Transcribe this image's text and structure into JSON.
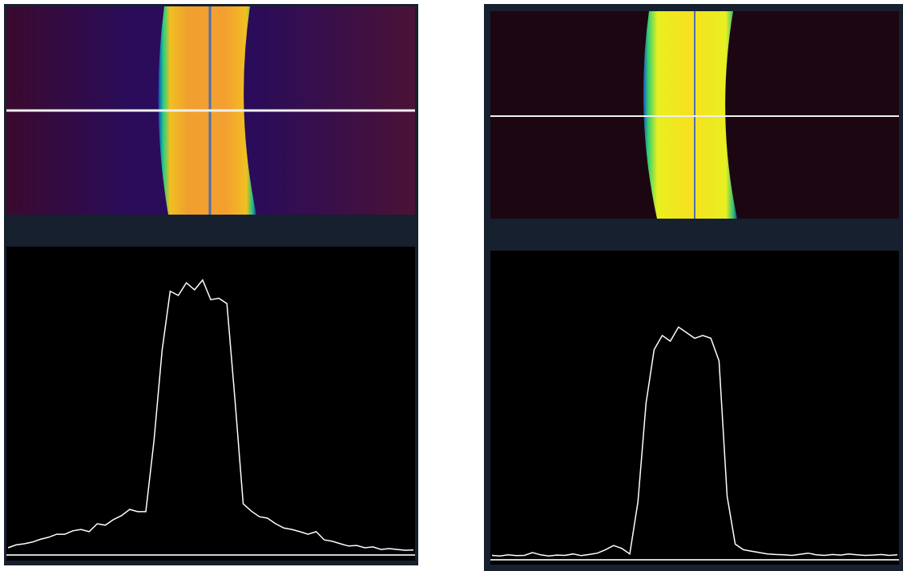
{
  "chart_data": [
    {
      "type": "line",
      "color": "#ffffff",
      "ylim": [
        0,
        100
      ],
      "values": [
        2,
        3,
        3.4,
        4,
        5,
        5.7,
        6.8,
        6.8,
        8,
        8.5,
        7.7,
        10.5,
        10,
        12,
        13.4,
        15.6,
        14.8,
        14.8,
        40,
        72,
        93,
        91.5,
        96,
        93.5,
        97,
        90,
        90.5,
        88.6,
        54,
        17.6,
        15,
        13,
        12.5,
        10.5,
        9,
        8.5,
        7.7,
        6.8,
        7.7,
        4.8,
        4.3,
        3.4,
        2.6,
        2.8,
        2,
        2.3,
        1.4,
        1.7,
        1.4,
        1.1,
        1.2
      ]
    },
    {
      "type": "line",
      "color": "#ffffff",
      "ylim": [
        0,
        100
      ],
      "values": [
        1,
        0.8,
        1.2,
        0.9,
        1,
        2,
        1.2,
        0.8,
        1.1,
        1,
        1.5,
        0.9,
        1.3,
        1.8,
        3,
        4.5,
        3.5,
        1.5,
        20,
        55,
        74,
        79,
        77,
        82,
        80,
        78,
        79,
        78,
        70,
        22,
        5,
        3,
        2.5,
        2,
        1.5,
        1.3,
        1.2,
        1,
        1.4,
        1.8,
        1.2,
        1,
        1.3,
        1.1,
        1.5,
        1.2,
        1,
        1.1,
        1.3,
        1,
        1.2
      ]
    }
  ]
}
